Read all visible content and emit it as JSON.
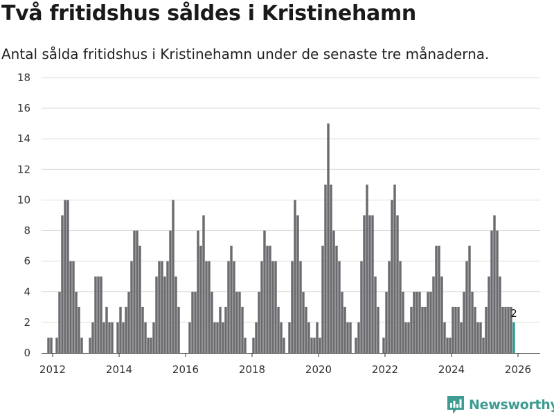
{
  "header": {
    "title": "Två fritidshus såldes i Kristinehamn",
    "subtitle": "Antal sålda fritidshus i Kristinehamn under de senaste tre månaderna."
  },
  "brand": {
    "name": "Newsworthy",
    "color": "#3e9c91",
    "icon": "bar-chart-logo-icon"
  },
  "chart_data": {
    "type": "bar",
    "title": "",
    "xlabel": "",
    "ylabel": "",
    "ylim": [
      0,
      18
    ],
    "yticks": [
      "0",
      "2",
      "4",
      "6",
      "8",
      "10",
      "12",
      "14",
      "16",
      "18"
    ],
    "xticks": [
      "2012",
      "2014",
      "2016",
      "2018",
      "2020",
      "2022",
      "2024",
      "2026"
    ],
    "xlim": [
      "2011-09",
      "2026-09"
    ],
    "grid": true,
    "legend": "none",
    "bar_color": "#6b6a6f",
    "highlight_color": "#2e9b90",
    "start_month": "2011-10",
    "values": [
      0,
      1,
      1,
      0,
      1,
      4,
      9,
      10,
      10,
      6,
      6,
      4,
      3,
      1,
      0,
      0,
      1,
      2,
      5,
      5,
      5,
      2,
      3,
      2,
      2,
      0,
      2,
      3,
      2,
      3,
      4,
      6,
      8,
      8,
      7,
      3,
      2,
      1,
      1,
      2,
      5,
      6,
      6,
      5,
      6,
      8,
      10,
      5,
      3,
      0,
      0,
      0,
      2,
      4,
      4,
      8,
      7,
      9,
      6,
      6,
      4,
      2,
      2,
      3,
      2,
      3,
      6,
      7,
      6,
      4,
      4,
      3,
      1,
      0,
      0,
      1,
      2,
      4,
      6,
      8,
      7,
      7,
      6,
      6,
      3,
      2,
      1,
      0,
      2,
      6,
      10,
      9,
      6,
      4,
      3,
      2,
      1,
      1,
      2,
      1,
      7,
      11,
      15,
      11,
      8,
      7,
      6,
      4,
      3,
      2,
      2,
      0,
      1,
      2,
      6,
      9,
      11,
      9,
      9,
      5,
      3,
      0,
      1,
      4,
      6,
      10,
      11,
      9,
      6,
      4,
      2,
      2,
      3,
      4,
      4,
      4,
      3,
      3,
      4,
      4,
      5,
      7,
      7,
      5,
      2,
      1,
      1,
      3,
      3,
      3,
      2,
      4,
      6,
      7,
      4,
      3,
      2,
      2,
      1,
      3,
      5,
      8,
      9,
      8,
      5,
      3,
      3,
      3,
      3,
      2
    ],
    "last_label": "2"
  }
}
